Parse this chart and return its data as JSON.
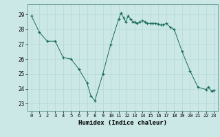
{
  "x": [
    0,
    1,
    2,
    3,
    4,
    5,
    6,
    7,
    7.5,
    8,
    9,
    10,
    11,
    11.3,
    11.6,
    11.9,
    12.2,
    12.5,
    12.8,
    13,
    13.3,
    13.6,
    14,
    14.3,
    14.6,
    15,
    15.3,
    15.6,
    16,
    16.3,
    16.6,
    17,
    17.5,
    18,
    19,
    20,
    21,
    22,
    22.3,
    22.7,
    23
  ],
  "y": [
    28.9,
    27.8,
    27.2,
    27.2,
    26.1,
    26.0,
    25.3,
    24.4,
    23.5,
    23.2,
    25.0,
    27.0,
    28.7,
    29.1,
    28.8,
    28.5,
    28.9,
    28.7,
    28.5,
    28.5,
    28.4,
    28.5,
    28.6,
    28.5,
    28.4,
    28.4,
    28.4,
    28.4,
    28.35,
    28.3,
    28.3,
    28.4,
    28.15,
    28.0,
    26.5,
    25.2,
    24.1,
    23.95,
    24.1,
    23.85,
    23.9
  ],
  "xlabel": "Humidex (Indice chaleur)",
  "ylabel": "",
  "xlim": [
    -0.5,
    23.5
  ],
  "ylim": [
    22.5,
    29.7
  ],
  "yticks": [
    23,
    24,
    25,
    26,
    27,
    28,
    29
  ],
  "xticks": [
    0,
    1,
    2,
    3,
    4,
    5,
    6,
    7,
    8,
    9,
    10,
    11,
    12,
    13,
    14,
    15,
    16,
    17,
    18,
    19,
    20,
    21,
    22,
    23
  ],
  "line_color": "#1a6b5a",
  "marker_color": "#1a6b5a",
  "bg_color": "#cce8e6",
  "grid_color": "#b0d8d5",
  "fig_bg": "#cce8e6"
}
